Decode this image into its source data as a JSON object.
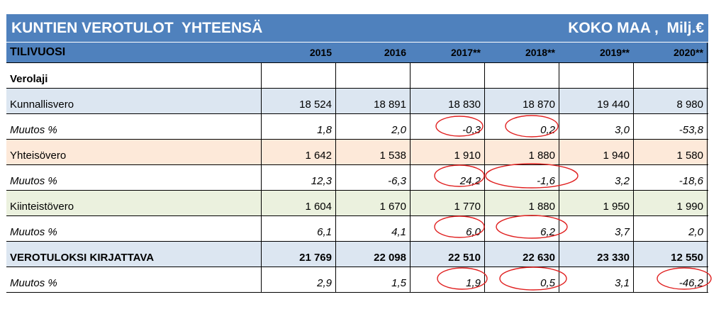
{
  "title": {
    "left": "KUNTIEN VEROTULOT  YHTEENSÄ",
    "right": "KOKO MAA ,  Milj.€"
  },
  "header": {
    "label": "TILIVUOSI",
    "years": [
      "2015",
      "2016",
      "2017**",
      "2018**",
      "2019**",
      "2020**"
    ]
  },
  "rows": [
    {
      "label": "Verolaji",
      "values": [
        "",
        "",
        "",
        "",
        "",
        ""
      ]
    },
    {
      "label": "Kunnallisvero",
      "values": [
        "18 524",
        "18 891",
        "18 830",
        "18 870",
        "19 440",
        "8 980"
      ]
    },
    {
      "label": "Muutos %",
      "values": [
        "1,8",
        "2,0",
        "-0,3",
        "0,2",
        "3,0",
        "-53,8"
      ]
    },
    {
      "label": "Yhteisövero",
      "values": [
        "1 642",
        "1 538",
        "1 910",
        "1 880",
        "1 940",
        "1 580"
      ]
    },
    {
      "label": "Muutos %",
      "values": [
        "12,3",
        "-6,3",
        "24,2",
        "-1,6",
        "3,2",
        "-18,6"
      ]
    },
    {
      "label": "Kiinteistövero",
      "values": [
        "1 604",
        "1 670",
        "1 770",
        "1 880",
        "1 950",
        "1 990"
      ]
    },
    {
      "label": "Muutos %",
      "values": [
        "6,1",
        "4,1",
        "6,0",
        "6,2",
        "3,7",
        "2,0"
      ]
    },
    {
      "label": "VEROTULOKSI KIRJATTAVA",
      "values": [
        "21 769",
        "22 098",
        "22 510",
        "22 630",
        "23 330",
        "12 550"
      ]
    },
    {
      "label": "Muutos %",
      "values": [
        "2,9",
        "1,5",
        "1,9",
        "0,5",
        "3,1",
        "-46,2"
      ]
    }
  ],
  "annotation_color": "#e02020"
}
